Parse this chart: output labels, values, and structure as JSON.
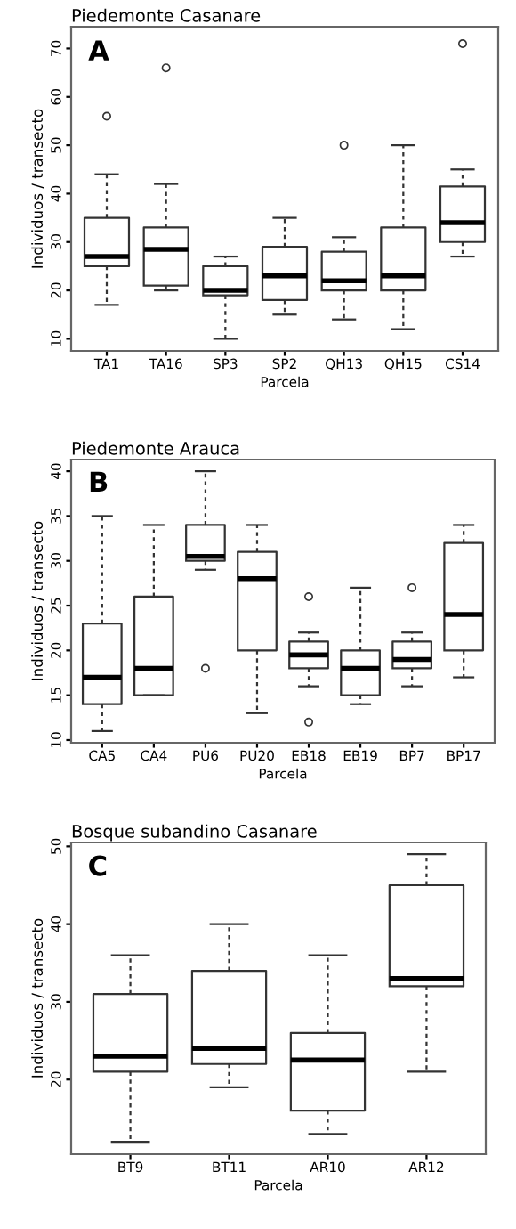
{
  "chart_data": [
    {
      "type": "box",
      "title": "Piedemonte Casanare",
      "xlabel": "Parcela",
      "ylabel": "Individuos / transecto",
      "annotations": [
        "A"
      ],
      "categories": [
        "TA1",
        "TA16",
        "SP3",
        "SP2",
        "QH13",
        "QH15",
        "CS14"
      ],
      "boxes": [
        {
          "low": 17,
          "q1": 25,
          "median": 27,
          "q3": 35,
          "high": 44,
          "outliers": [
            56
          ]
        },
        {
          "low": 20,
          "q1": 21,
          "median": 28.5,
          "q3": 33,
          "high": 42,
          "outliers": [
            66
          ]
        },
        {
          "low": 10,
          "q1": 19,
          "median": 20,
          "q3": 25,
          "high": 27
        },
        {
          "low": 15,
          "q1": 18,
          "median": 23,
          "q3": 29,
          "high": 35
        },
        {
          "low": 14,
          "q1": 20,
          "median": 22,
          "q3": 28,
          "high": 31,
          "outliers": [
            50
          ]
        },
        {
          "low": 12,
          "q1": 20,
          "median": 23,
          "q3": 33,
          "high": 50
        },
        {
          "low": 27,
          "q1": 30,
          "median": 34,
          "q3": 41.5,
          "high": 45,
          "outliers": [
            71
          ]
        }
      ],
      "ylim": [
        7.5,
        74.5
      ],
      "yticks": [
        10,
        20,
        30,
        40,
        50,
        60,
        70
      ],
      "marker": "circle"
    },
    {
      "type": "box",
      "title": "Piedemonte Arauca",
      "xlabel": "Parcela",
      "ylabel": "Individuos / transecto",
      "annotations": [
        "B"
      ],
      "categories": [
        "CA5",
        "CA4",
        "PU6",
        "PU20",
        "EB18",
        "EB19",
        "BP7",
        "BP17"
      ],
      "boxes": [
        {
          "low": 11,
          "q1": 14,
          "median": 17,
          "q3": 23,
          "high": 35
        },
        {
          "low": 15,
          "q1": 15,
          "median": 18,
          "q3": 26,
          "high": 34
        },
        {
          "low": 29,
          "q1": 30,
          "median": 30.5,
          "q3": 34,
          "high": 40,
          "outliers": [
            18
          ]
        },
        {
          "low": 13,
          "q1": 20,
          "median": 28,
          "q3": 31,
          "high": 34
        },
        {
          "low": 16,
          "q1": 18,
          "median": 19.5,
          "q3": 21,
          "high": 22,
          "outliers": [
            26,
            12
          ]
        },
        {
          "low": 14,
          "q1": 15,
          "median": 18,
          "q3": 20,
          "high": 27
        },
        {
          "low": 16,
          "q1": 18,
          "median": 19,
          "q3": 21,
          "high": 22,
          "outliers": [
            27
          ]
        },
        {
          "low": 17,
          "q1": 20,
          "median": 24,
          "q3": 32,
          "high": 34
        }
      ],
      "ylim": [
        9.7,
        41.3
      ],
      "yticks": [
        10,
        15,
        20,
        25,
        30,
        35,
        40
      ],
      "marker": "circle"
    },
    {
      "type": "box",
      "title": "Bosque subandino Casanare",
      "xlabel": "Parcela",
      "ylabel": "Individuos / transecto",
      "annotations": [
        "C"
      ],
      "categories": [
        "BT9",
        "BT11",
        "AR10",
        "AR12"
      ],
      "boxes": [
        {
          "low": 12,
          "q1": 21,
          "median": 23,
          "q3": 31,
          "high": 36
        },
        {
          "low": 19,
          "q1": 22,
          "median": 24,
          "q3": 34,
          "high": 40
        },
        {
          "low": 13,
          "q1": 16,
          "median": 22.5,
          "q3": 26,
          "high": 36
        },
        {
          "low": 21,
          "q1": 32,
          "median": 33,
          "q3": 45,
          "high": 49
        }
      ],
      "ylim": [
        10.4,
        50.5
      ],
      "yticks": [
        20,
        30,
        40,
        50
      ],
      "marker": "circle"
    }
  ]
}
